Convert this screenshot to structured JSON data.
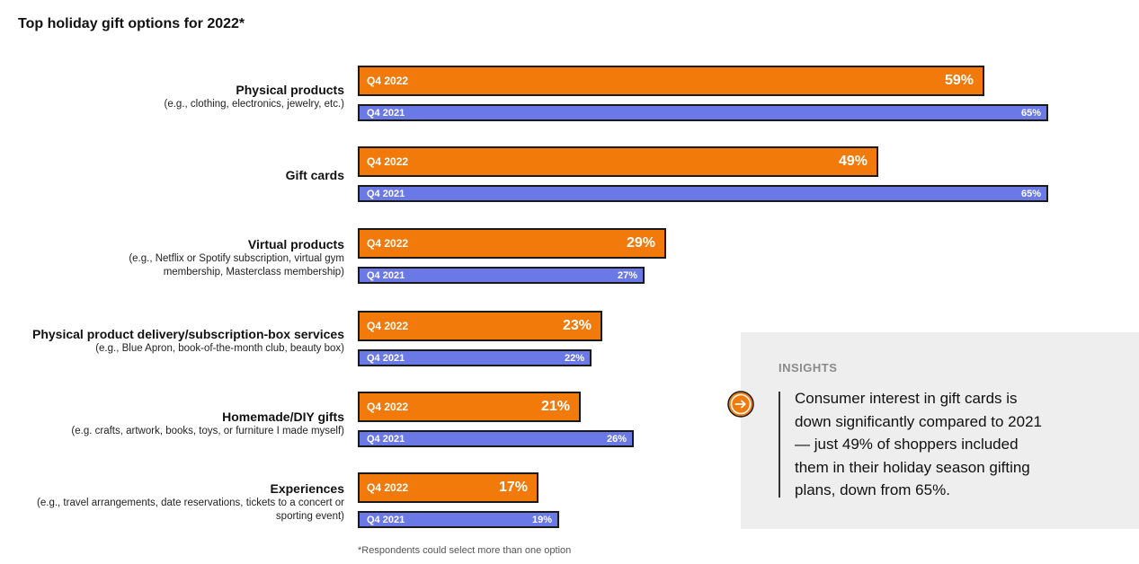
{
  "chart_data": {
    "type": "bar",
    "orientation": "horizontal",
    "title": "Top holiday gift options for 2022*",
    "categories": [
      {
        "name": "Physical products",
        "description": "(e.g., clothing, electronics, jewelry, etc.)"
      },
      {
        "name": "Gift cards",
        "description": ""
      },
      {
        "name": "Virtual products",
        "description": "(e.g., Netflix or Spotify subscription, virtual gym membership, Masterclass membership)"
      },
      {
        "name": "Physical product delivery/subscription-box services",
        "description": "(e.g., Blue Apron, book-of-the-month club, beauty box)"
      },
      {
        "name": "Homemade/DIY gifts",
        "description": "(e.g. crafts, artwork, books, toys, or furniture I made myself)"
      },
      {
        "name": "Experiences",
        "description": "(e.g., travel arrangements, date reservations, tickets to a concert or sporting event)"
      }
    ],
    "series": [
      {
        "name": "Q4 2022",
        "color": "#f27a0a",
        "values": [
          59,
          49,
          29,
          23,
          21,
          17
        ],
        "labels": [
          "59%",
          "49%",
          "29%",
          "23%",
          "21%",
          "17%"
        ]
      },
      {
        "name": "Q4 2021",
        "color": "#6b79e6",
        "values": [
          65,
          65,
          27,
          22,
          26,
          19
        ],
        "labels": [
          "65%",
          "65%",
          "27%",
          "22%",
          "26%",
          "19%"
        ]
      }
    ],
    "xlim": [
      0,
      65
    ],
    "unit": "%",
    "footnote": "*Respondents could select more than one option"
  },
  "insights": {
    "heading": "INSIGHTS",
    "icon": "arrow-right-icon",
    "accent_color": "#f27a0a",
    "lines": [
      "Consumer interest in gift cards is",
      "down significantly compared to 2021",
      "— just 49% of shoppers included",
      "them in their holiday season gifting",
      "plans, down from 65%."
    ]
  }
}
